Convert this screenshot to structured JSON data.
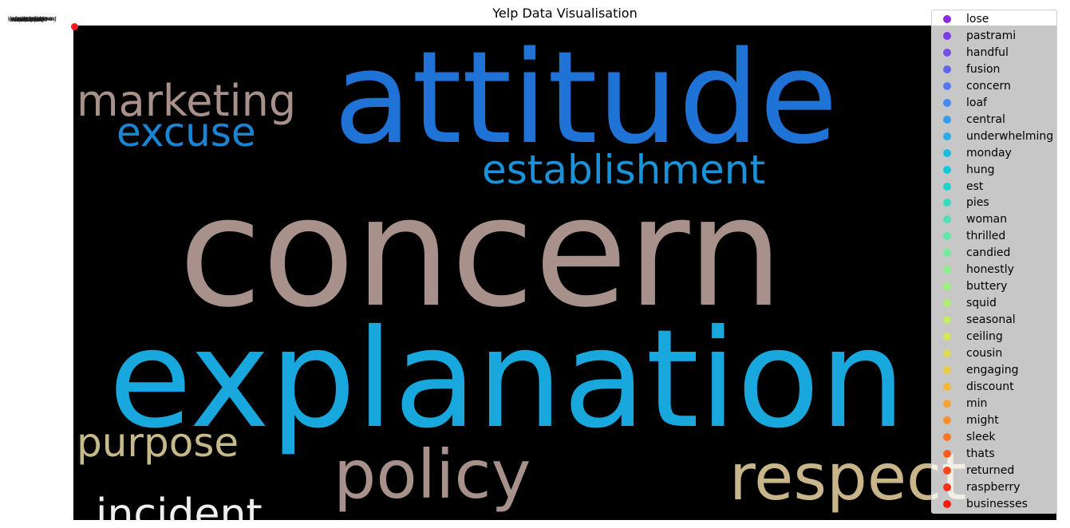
{
  "chart_data": {
    "type": "scatter",
    "title": "Yelp Data Visualisation",
    "xlabel": "",
    "ylabel": "",
    "legend_position": "right",
    "legend": [
      {
        "label": "lose",
        "color": "#8b2be2"
      },
      {
        "label": "pastrami",
        "color": "#7f3be7"
      },
      {
        "label": "handful",
        "color": "#7350ec"
      },
      {
        "label": "fusion",
        "color": "#6364ef"
      },
      {
        "label": "concern",
        "color": "#5478f2"
      },
      {
        "label": "loaf",
        "color": "#438af3"
      },
      {
        "label": "central",
        "color": "#339df0"
      },
      {
        "label": "underwhelming",
        "color": "#23aee9"
      },
      {
        "label": "monday",
        "color": "#17bde2"
      },
      {
        "label": "hung",
        "color": "#14c9d9"
      },
      {
        "label": "est",
        "color": "#1fd3cf"
      },
      {
        "label": "pies",
        "color": "#34dcc2"
      },
      {
        "label": "woman",
        "color": "#4de2b5"
      },
      {
        "label": "thrilled",
        "color": "#5fe8a7"
      },
      {
        "label": "candied",
        "color": "#73ec99"
      },
      {
        "label": "honestly",
        "color": "#88ef8a"
      },
      {
        "label": "buttery",
        "color": "#9cf07c"
      },
      {
        "label": "squid",
        "color": "#aeef6f"
      },
      {
        "label": "seasonal",
        "color": "#c1ed62"
      },
      {
        "label": "ceiling",
        "color": "#d2e656"
      },
      {
        "label": "cousin",
        "color": "#dfdb4c"
      },
      {
        "label": "engaging",
        "color": "#ecca43"
      },
      {
        "label": "discount",
        "color": "#f4b73a"
      },
      {
        "label": "min",
        "color": "#f9a232"
      },
      {
        "label": "might",
        "color": "#fc8d2b"
      },
      {
        "label": "sleek",
        "color": "#fe7424"
      },
      {
        "label": "thats",
        "color": "#ff5c1e"
      },
      {
        "label": "returned",
        "color": "#ff4419"
      },
      {
        "label": "raspberry",
        "color": "#ff2d15"
      },
      {
        "label": "businesses",
        "color": "#ff1a10"
      }
    ],
    "wordcloud": {
      "background": "#000000",
      "words": [
        {
          "text": "concern",
          "color": "#a8918a"
        },
        {
          "text": "attitude",
          "color": "#1f73d6"
        },
        {
          "text": "explanation",
          "color": "#18a8dd"
        },
        {
          "text": "marketing",
          "color": "#a8918a"
        },
        {
          "text": "excuse",
          "color": "#1a86d3"
        },
        {
          "text": "establishment",
          "color": "#1a92d9"
        },
        {
          "text": "purpose",
          "color": "#c6b98a"
        },
        {
          "text": "policy",
          "color": "#a8918a"
        },
        {
          "text": "respect",
          "color": "#c8b58a"
        },
        {
          "text": "incident",
          "color": "#efefef"
        }
      ]
    }
  }
}
